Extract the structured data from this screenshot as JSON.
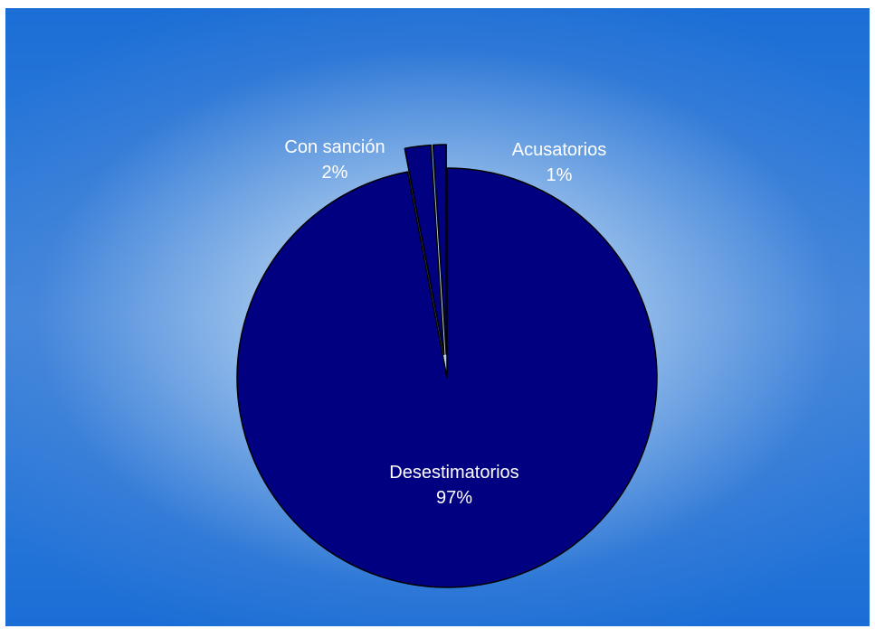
{
  "chart_data": {
    "type": "pie",
    "title": "",
    "slices": [
      {
        "label": "Desestimatorios",
        "value": 97,
        "value_label": "97%",
        "exploded": false
      },
      {
        "label": "Con sanción",
        "value": 2,
        "value_label": "2%",
        "exploded": true
      },
      {
        "label": "Acusatorios",
        "value": 1,
        "value_label": "1%",
        "exploded": true
      }
    ],
    "start_angle_deg": 0,
    "direction": "clockwise",
    "legend": "none",
    "colors": {
      "slice_fill": "#000080",
      "slice_stroke": "#000000",
      "label": "#ffffff"
    }
  }
}
